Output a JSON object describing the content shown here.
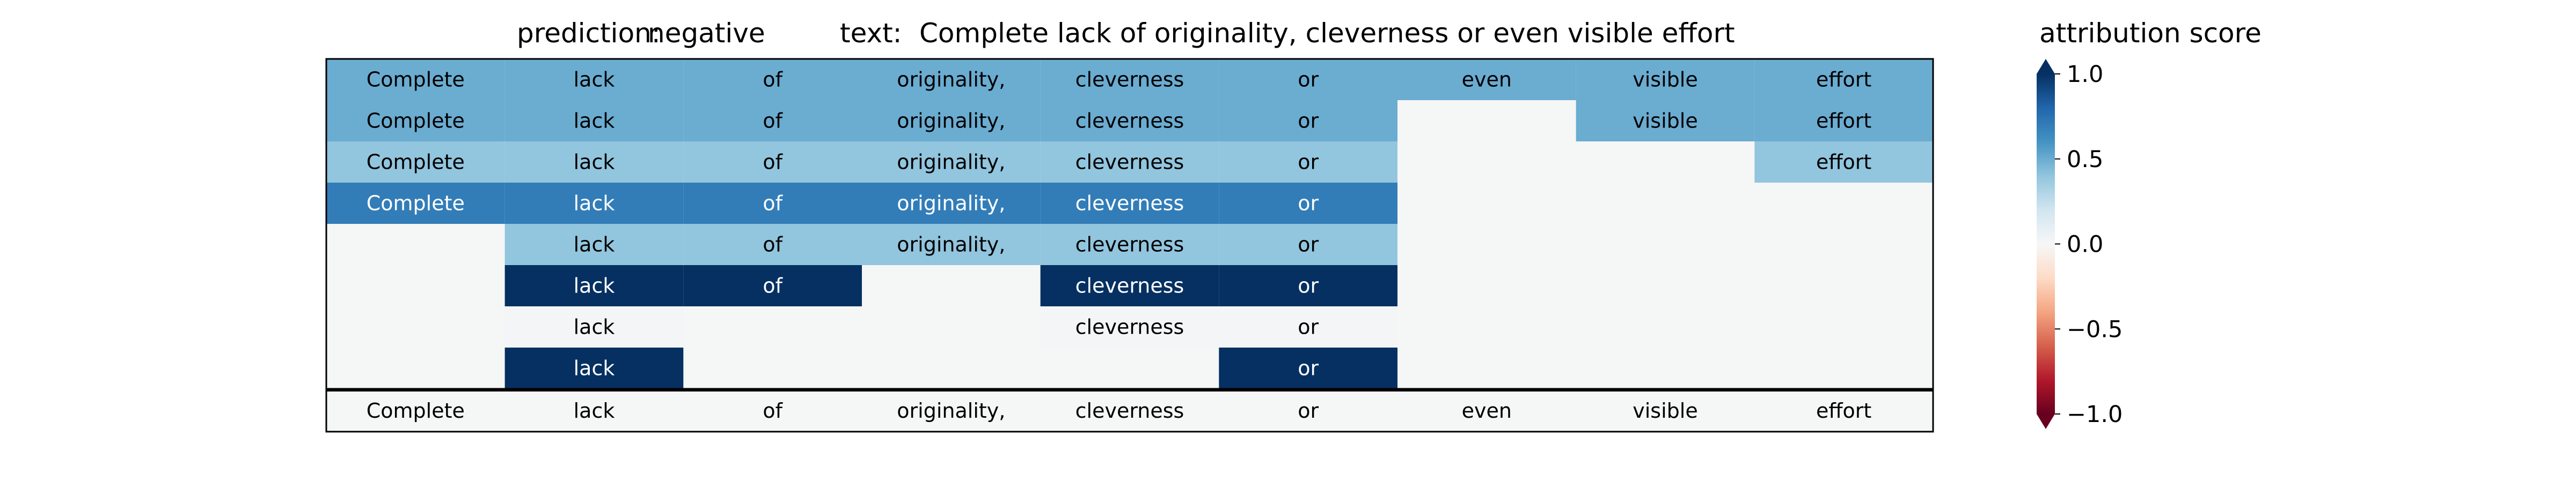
{
  "chart_data": {
    "type": "heatmap",
    "title_parts": {
      "prediction_label": "prediction:",
      "prediction_value": "negative",
      "text_label": "text:",
      "text_value": "Complete lack of originality, cleverness or even visible effort"
    },
    "colorbar": {
      "label": "attribution score",
      "ticks": [
        "1.0",
        "0.5",
        "0.0",
        "−0.5",
        "−1.0"
      ],
      "range": [
        -1.0,
        1.0
      ],
      "colormap": "RdBu",
      "extend": "both"
    },
    "tokens": [
      "Complete",
      "lack",
      "of",
      "originality,",
      "cleverness",
      "or",
      "even",
      "visible",
      "effort"
    ],
    "rows": [
      [
        0.5,
        0.5,
        0.5,
        0.5,
        0.5,
        0.5,
        0.5,
        0.5,
        0.5
      ],
      [
        0.5,
        0.5,
        0.5,
        0.5,
        0.5,
        0.5,
        null,
        0.5,
        0.5
      ],
      [
        0.4,
        0.4,
        0.4,
        0.4,
        0.4,
        0.4,
        null,
        null,
        0.4
      ],
      [
        0.7,
        0.7,
        0.7,
        0.7,
        0.7,
        0.7,
        null,
        null,
        null
      ],
      [
        null,
        0.4,
        0.4,
        0.4,
        0.4,
        0.4,
        null,
        null,
        null
      ],
      [
        null,
        1.0,
        1.0,
        null,
        1.0,
        1.0,
        null,
        null,
        null
      ],
      [
        null,
        0.02,
        null,
        null,
        0.02,
        0.02,
        null,
        null,
        null
      ],
      [
        null,
        1.0,
        null,
        null,
        null,
        1.0,
        null,
        null,
        null
      ]
    ],
    "bottom_row": [
      "Complete",
      "lack",
      "of",
      "originality,",
      "cleverness",
      "or",
      "even",
      "visible",
      "effort"
    ]
  }
}
